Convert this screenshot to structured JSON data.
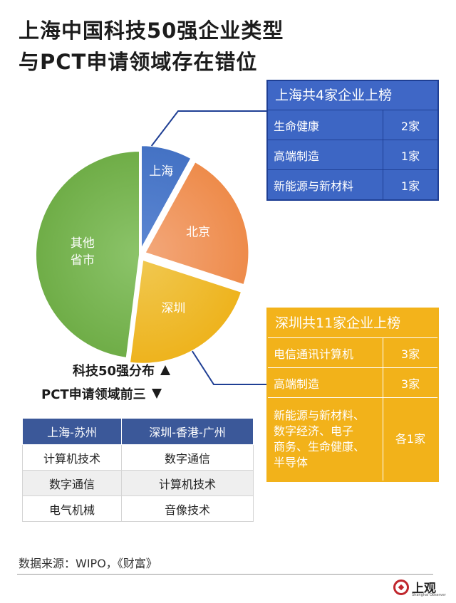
{
  "title_line1": "上海中国科技50强企业类型",
  "title_line2": "与PCT申请领域存在错位",
  "chart_data": {
    "type": "pie",
    "slices": [
      {
        "label": "上海",
        "value": 4,
        "color": "#4472c4"
      },
      {
        "label": "北京",
        "value": 11,
        "color": "#ee8b4a"
      },
      {
        "label": "深圳",
        "value": 11,
        "color": "#eeb31d"
      },
      {
        "label": "其他\n省市",
        "value": 24,
        "color": "#6fad47"
      }
    ],
    "total": 50,
    "exploded": [
      "上海",
      "北京",
      "深圳"
    ]
  },
  "shanghai_panel": {
    "header": "上海共4家企业上榜",
    "rows": [
      {
        "field": "生命健康",
        "count": "2家"
      },
      {
        "field": "高端制造",
        "count": "1家"
      },
      {
        "field": "新能源与新材料",
        "count": "1家"
      }
    ]
  },
  "shenzhen_panel": {
    "header": "深圳共11家企业上榜",
    "rows": [
      {
        "field": "电信通讯计算机",
        "count": "3家"
      },
      {
        "field": "高端制造",
        "count": "3家"
      },
      {
        "field": "新能源与新材料、\n数字经济、电子\n商务、生命健康、\n半导体",
        "count": "各1家"
      }
    ]
  },
  "legend": {
    "up": "科技50强分布",
    "down": "PCT申请领域前三"
  },
  "compare_table": {
    "headers": [
      "上海-苏州",
      "深圳-香港-广州"
    ],
    "rows": [
      [
        "计算机技术",
        "数字通信"
      ],
      [
        "数字通信",
        "计算机技术"
      ],
      [
        "电气机械",
        "音像技术"
      ]
    ]
  },
  "source": "数据来源：WIPO，《财富》",
  "logo": {
    "name": "上观",
    "sub": "Shanghai Observer"
  }
}
